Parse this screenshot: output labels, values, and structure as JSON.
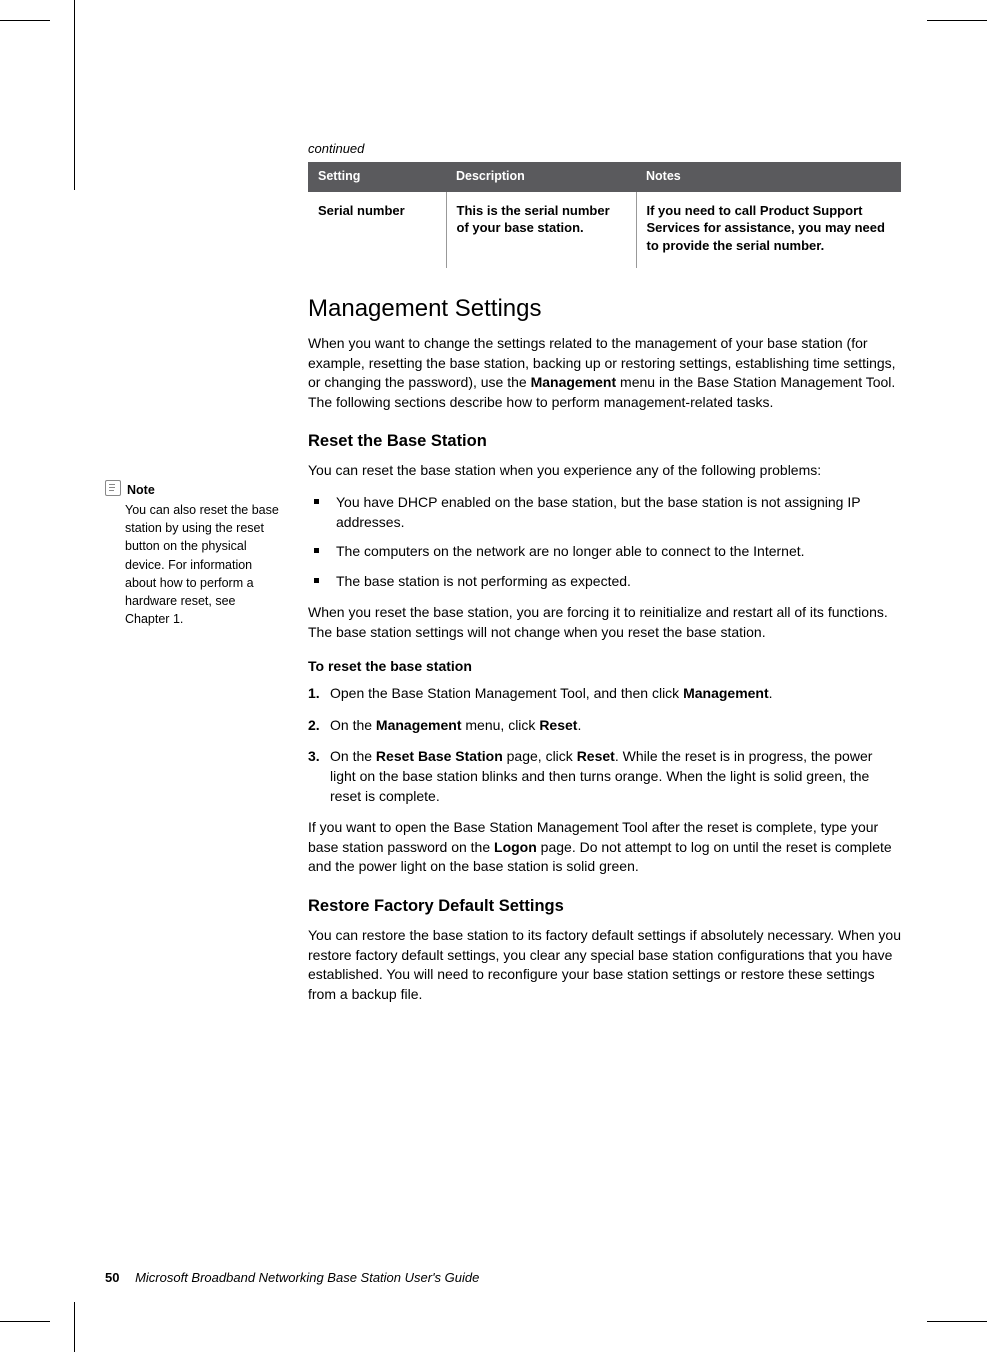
{
  "page": {
    "number": "50",
    "footer_title": "Microsoft Broadband Networking Base Station User's Guide"
  },
  "colors": {
    "table_header_bg": "#5a5a5d",
    "table_header_fg": "#ffffff",
    "body_bg": "#ffffff",
    "body_fg": "#000000",
    "cell_border": "#999999"
  },
  "sidebar": {
    "note_label": "Note",
    "note_body": "You can also reset the base station by using the reset button on the physical device. For information about how to perform a hardware reset, see Chapter 1."
  },
  "table": {
    "continued_label": "continued",
    "headers": {
      "setting": "Setting",
      "description": "Description",
      "notes": "Notes"
    },
    "row": {
      "setting": "Serial number",
      "description": "This is the serial number of your base station.",
      "notes": "If you need to call Product Support Services for assistance, you may need to provide the serial number."
    }
  },
  "mgmt": {
    "heading": "Management Settings",
    "intro_a": "When you want to change the settings related to the management of your base station (for example, resetting the base station, backing up or restoring settings, establishing time settings, or changing the password), use the ",
    "intro_bold": "Management",
    "intro_b": " menu in the Base Station Management Tool. The following sections describe how to perform management-related tasks."
  },
  "reset": {
    "heading": "Reset the Base Station",
    "p1": "You can reset the base station when you experience any of the following problems:",
    "b1": "You have DHCP enabled on the base station, but the base station is not assigning IP addresses.",
    "b2": "The computers on the network are no longer able to connect to the Internet.",
    "b3": "The base station is not performing as expected.",
    "p2": "When you reset the base station, you are forcing it to reinitialize and restart all of its functions. The base station settings will not change when you reset the base station.",
    "steps_heading": "To reset the base station",
    "s1a": "Open the Base Station Management Tool, and then click ",
    "s1b": "Management",
    "s1c": ".",
    "s2a": "On the ",
    "s2b": "Management",
    "s2c": " menu, click ",
    "s2d": "Reset",
    "s2e": ".",
    "s3a": "On the ",
    "s3b": "Reset Base Station",
    "s3c": " page, click ",
    "s3d": "Reset",
    "s3e": ". While the reset is in progress, the power light on the base station blinks and then turns orange. When the light is solid green, the reset is complete.",
    "p3a": "If you want to open the Base Station Management Tool after the reset is complete, type your base station password on the ",
    "p3b": "Logon",
    "p3c": " page. Do not attempt to log on until the reset is complete and the power light on the base station is solid green."
  },
  "restore": {
    "heading": "Restore Factory Default Settings",
    "p1": "You can restore the base station to its factory default settings if absolutely necessary. When you restore factory default settings, you clear any special base station configurations that you have established. You will need to reconfigure your base station settings or restore these settings from a backup file."
  }
}
